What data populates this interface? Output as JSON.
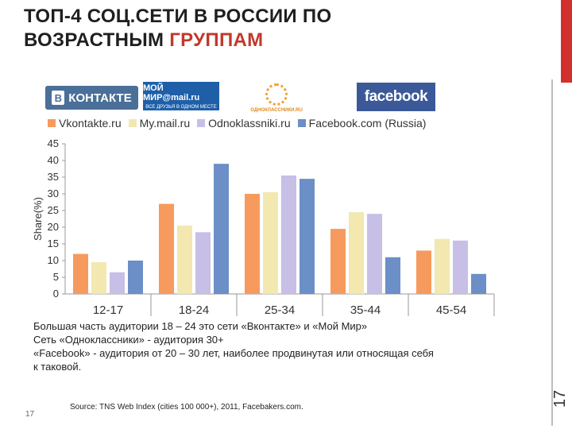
{
  "slide": {
    "title_line1": "ТОП-4 СОЦ.СЕТИ В РОССИИ ПО",
    "title_line2_a": "ВОЗРАСТНЫМ",
    "title_line2_b": "ГРУППАМ",
    "side_number": "17",
    "page_number": "17",
    "source": "Source: TNS Web Index (cities 100 000+), 2011, Facebakers.com.",
    "caption": [
      "Большая часть аудитории 18 – 24 это сети «Вконтакте» и «Мой Мир»",
      "Сеть «Одноклассники» - аудитория 30+",
      "«Facebook» - аудитория от 20 – 30 лет, наиболее продвинутая или относящая себя",
      "к таковой."
    ]
  },
  "logos": {
    "vk_text": "КОНТАКТЕ",
    "vk_badge": "В",
    "mm_text": "МОЙ МИР@mail.ru",
    "mm_sub": "ВСЕ ДРУЗЬЯ В ОДНОМ МЕСТЕ",
    "ok_text": "ОДНОКЛАССНИКИ.RU",
    "fb_text": "facebook"
  },
  "colors": {
    "vk": "#f79a5e",
    "mm": "#f2e8b0",
    "ok": "#c7bfe6",
    "fb": "#6b8fc6",
    "accent": "#c0392b"
  },
  "chart_data": {
    "type": "bar",
    "categories": [
      "12-17",
      "18-24",
      "25-34",
      "35-44",
      "45-54"
    ],
    "series": [
      {
        "name": "Vkontakte.ru",
        "values": [
          12,
          27,
          30,
          19.5,
          13
        ]
      },
      {
        "name": "My.mail.ru",
        "values": [
          9.5,
          20.5,
          30.5,
          24.5,
          16.5
        ]
      },
      {
        "name": "Odnoklassniki.ru",
        "values": [
          6.5,
          18.5,
          35.5,
          24,
          16
        ]
      },
      {
        "name": "Facebook.com (Russia)",
        "values": [
          10,
          39,
          34.5,
          11,
          6
        ]
      }
    ],
    "ylabel": "Share(%)",
    "ylim": [
      0,
      45
    ],
    "yticks": [
      0,
      5,
      10,
      15,
      20,
      25,
      30,
      35,
      40,
      45
    ],
    "legend": "top",
    "grid": false
  }
}
